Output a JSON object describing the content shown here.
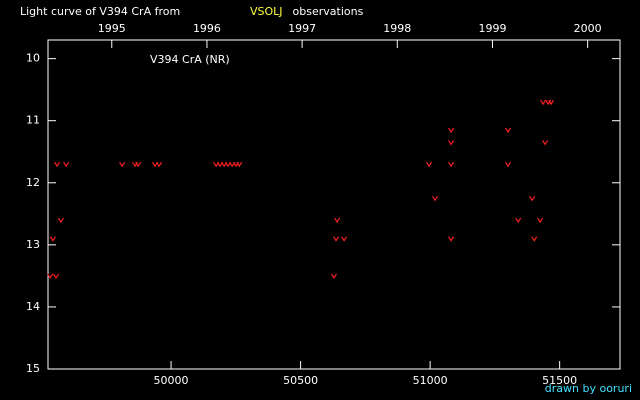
{
  "chart_data": {
    "type": "scatter",
    "title": "Light curve of V394 CrA from",
    "title_source": "VSOLJ",
    "title_suffix": "observations",
    "annotation": "V394 CrA (NR)",
    "credit": "drawn by ooruri",
    "x": [
      49533,
      49556,
      49544,
      49575,
      49560,
      49595,
      49811,
      49861,
      49873,
      49938,
      49954,
      50174,
      50189,
      50205,
      50220,
      50236,
      50251,
      50263,
      50629,
      50637,
      50668,
      50641,
      50996,
      51019,
      51081,
      51081,
      51081,
      51081,
      51301,
      51301,
      51340,
      51394,
      51402,
      51425,
      51436,
      51456,
      51467,
      51444
    ],
    "values": [
      13.5,
      13.5,
      12.9,
      12.6,
      11.7,
      11.7,
      11.7,
      11.7,
      11.7,
      11.7,
      11.7,
      11.7,
      11.7,
      11.7,
      11.7,
      11.7,
      11.7,
      11.7,
      13.5,
      12.9,
      12.9,
      12.6,
      11.7,
      12.25,
      11.15,
      11.35,
      11.7,
      12.9,
      11.15,
      11.7,
      12.6,
      12.25,
      12.9,
      12.6,
      10.7,
      10.7,
      10.7,
      11.35
    ],
    "color": "#ff2020",
    "xlim": [
      49525,
      51733
    ],
    "xticks": [
      50000,
      50500,
      51000,
      51500
    ],
    "x2lim": [
      1994.33,
      2000.34
    ],
    "x2ticks": [
      1995,
      1996,
      1997,
      1998,
      1999,
      2000
    ],
    "ylim": [
      15,
      9.7
    ],
    "yticks": [
      10,
      11,
      12,
      13,
      14,
      15
    ]
  }
}
